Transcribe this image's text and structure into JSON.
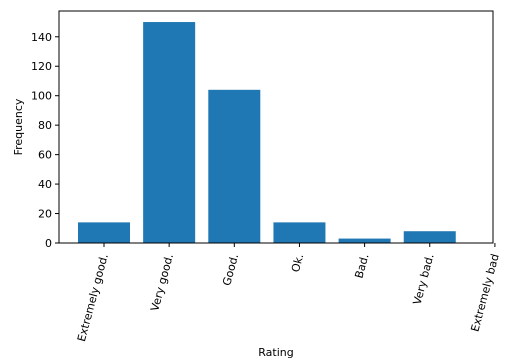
{
  "chart_data": {
    "type": "bar",
    "title": "",
    "xlabel": "Rating",
    "ylabel": "Frequency",
    "categories": [
      "Extremely good.",
      "Very good.",
      "Good.",
      "Ok.",
      "Bad.",
      "Very bad.",
      "Extremely bad"
    ],
    "values": [
      14,
      150,
      104,
      14,
      3,
      8,
      null
    ],
    "ylim": [
      0,
      157.5
    ],
    "yticks": [
      0,
      20,
      40,
      60,
      80,
      100,
      120,
      140
    ],
    "grid": false,
    "bar_color": "#1f77b4"
  }
}
